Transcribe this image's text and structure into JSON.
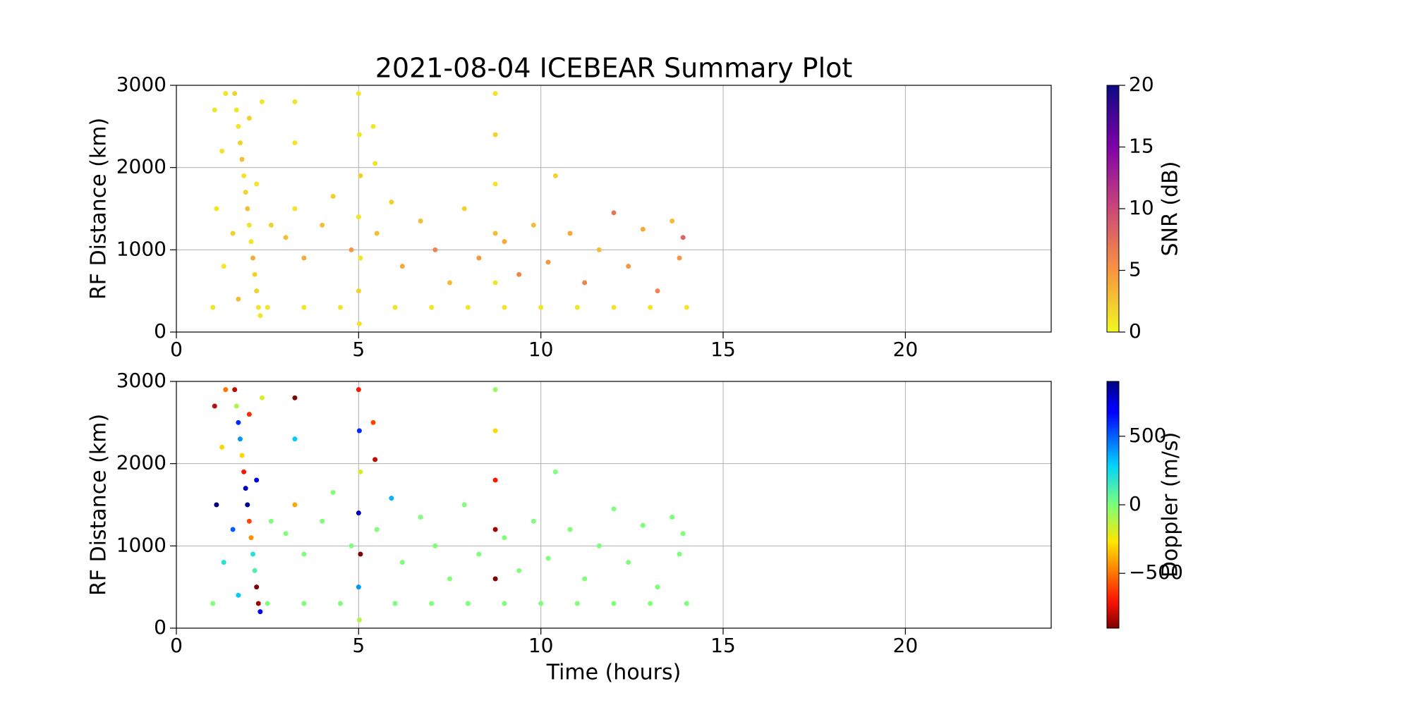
{
  "chart_data": [
    {
      "type": "scatter",
      "title": "2021-08-04 ICEBEAR Summary Plot",
      "ylabel": "RF Distance (km)",
      "colorbar_label": "SNR (dB)",
      "colormap": "plasma_r",
      "xlim": [
        0,
        24
      ],
      "xticks": [
        0,
        5,
        10,
        15,
        20
      ],
      "ylim": [
        0,
        3000
      ],
      "yticks": [
        0,
        1000,
        2000,
        3000
      ],
      "grid": true,
      "clim": [
        0,
        20
      ],
      "cticks": [
        0,
        5,
        10,
        15,
        20
      ],
      "x": [
        1.6,
        1.7,
        1.8,
        1.9,
        2.0,
        2.1,
        2.2,
        2.3,
        1.65,
        1.75,
        1.85,
        1.95,
        2.05,
        2.15,
        2.25,
        1.55,
        2.35,
        1.7,
        2.0,
        2.2,
        1.05,
        1.1,
        1.25,
        1.3,
        1.35,
        3.25,
        3.25,
        3.25,
        5.0,
        5.02,
        5.05,
        5.0,
        5.05,
        5.0,
        5.02,
        5.4,
        5.45,
        8.75,
        8.75,
        8.75,
        8.75,
        8.75,
        2.6,
        3.0,
        3.5,
        4.0,
        4.3,
        4.8,
        5.5,
        5.9,
        6.2,
        6.7,
        7.1,
        7.5,
        7.9,
        8.3,
        9.0,
        9.4,
        9.8,
        10.2,
        10.4,
        10.8,
        11.2,
        11.6,
        12.0,
        12.4,
        12.8,
        13.2,
        13.6,
        13.8,
        13.9,
        1.0,
        2.5,
        3.5,
        4.5,
        6,
        7,
        8,
        9,
        10,
        11,
        12,
        13,
        14
      ],
      "y": [
        2900,
        2500,
        2100,
        1700,
        1300,
        900,
        500,
        200,
        2700,
        2300,
        1900,
        1500,
        1100,
        700,
        300,
        1200,
        2800,
        400,
        2600,
        1800,
        2700,
        1500,
        2200,
        800,
        2900,
        2800,
        2300,
        1500,
        2900,
        2400,
        1900,
        1400,
        900,
        500,
        100,
        2500,
        2050,
        2900,
        2400,
        1800,
        1200,
        600,
        1300,
        1150,
        900,
        1300,
        1650,
        1000,
        1200,
        1580,
        800,
        1350,
        1000,
        600,
        1500,
        900,
        1100,
        700,
        1300,
        850,
        1900,
        1200,
        600,
        1000,
        1450,
        800,
        1250,
        500,
        1350,
        900,
        1150,
        300,
        300,
        300,
        300,
        300,
        300,
        300,
        300,
        300,
        300,
        300,
        300,
        300
      ],
      "c": [
        2,
        1,
        3,
        2,
        1,
        4,
        2,
        1,
        1,
        2,
        1,
        3,
        1,
        2,
        1,
        2,
        1,
        3,
        2,
        1,
        1,
        1,
        1,
        1,
        1,
        1,
        1,
        1,
        1,
        1,
        2,
        1,
        1,
        2,
        1,
        1,
        1,
        1,
        2,
        1,
        3,
        1,
        2,
        3,
        4,
        3,
        2,
        5,
        3,
        2,
        4,
        3,
        6,
        3,
        2,
        5,
        4,
        6,
        3,
        5,
        2,
        4,
        6,
        3,
        7,
        5,
        4,
        6,
        3,
        5,
        8,
        1,
        1,
        1,
        1,
        1,
        1,
        1,
        1,
        1,
        1,
        1,
        1,
        1
      ]
    },
    {
      "type": "scatter",
      "xlabel": "Time (hours)",
      "ylabel": "RF Distance (km)",
      "colorbar_label": "Doppler (m/s)",
      "colormap": "jet_r",
      "xlim": [
        0,
        24
      ],
      "xticks": [
        0,
        5,
        10,
        15,
        20
      ],
      "ylim": [
        0,
        3000
      ],
      "yticks": [
        0,
        1000,
        2000,
        3000
      ],
      "grid": true,
      "clim": [
        -900,
        900
      ],
      "cticks": [
        {
          "value": -500,
          "label": "−500"
        },
        0,
        500
      ],
      "x": [
        1.6,
        1.7,
        1.8,
        1.9,
        2.0,
        2.1,
        2.2,
        2.3,
        1.65,
        1.75,
        1.85,
        1.95,
        2.05,
        2.15,
        2.25,
        1.55,
        2.35,
        1.7,
        2.0,
        2.2,
        1.05,
        1.1,
        1.25,
        1.3,
        1.35,
        3.25,
        3.25,
        3.25,
        5.0,
        5.02,
        5.05,
        5.0,
        5.05,
        5.0,
        5.02,
        5.4,
        5.45,
        8.75,
        8.75,
        8.75,
        8.75,
        8.75,
        2.6,
        3.0,
        3.5,
        4.0,
        4.3,
        4.8,
        5.5,
        5.9,
        6.2,
        6.7,
        7.1,
        7.5,
        7.9,
        8.3,
        9.0,
        9.4,
        9.8,
        10.2,
        10.4,
        10.8,
        11.2,
        11.6,
        12.0,
        12.4,
        12.8,
        13.2,
        13.6,
        13.8,
        13.9,
        1.0,
        2.5,
        3.5,
        4.5,
        6,
        7,
        8,
        9,
        10,
        11,
        12,
        13,
        14
      ],
      "y": [
        2900,
        2500,
        2100,
        1700,
        1300,
        900,
        500,
        200,
        2700,
        2300,
        1900,
        1500,
        1100,
        700,
        300,
        1200,
        2800,
        400,
        2600,
        1800,
        2700,
        1500,
        2200,
        800,
        2900,
        2800,
        2300,
        1500,
        2900,
        2400,
        1900,
        1400,
        900,
        500,
        100,
        2500,
        2050,
        2900,
        2400,
        1800,
        1200,
        600,
        1300,
        1150,
        900,
        1300,
        1650,
        1000,
        1200,
        1580,
        800,
        1350,
        1000,
        600,
        1500,
        900,
        1100,
        700,
        1300,
        850,
        1900,
        1200,
        600,
        1000,
        1450,
        800,
        1250,
        500,
        1350,
        900,
        1150,
        300,
        300,
        300,
        300,
        300,
        300,
        300,
        300,
        300,
        300,
        300,
        300,
        300
      ],
      "c": [
        -800,
        600,
        -300,
        800,
        -600,
        200,
        -900,
        700,
        -100,
        400,
        -700,
        850,
        -450,
        100,
        -850,
        500,
        -200,
        300,
        -650,
        750,
        -800,
        900,
        -300,
        200,
        -500,
        -900,
        300,
        -400,
        -700,
        600,
        -200,
        800,
        -900,
        400,
        -100,
        -600,
        -800,
        -50,
        -300,
        -700,
        -850,
        -900,
        0,
        0,
        0,
        0,
        0,
        0,
        0,
        350,
        0,
        0,
        0,
        0,
        0,
        0,
        0,
        0,
        0,
        0,
        0,
        0,
        0,
        0,
        0,
        0,
        0,
        0,
        0,
        0,
        0,
        0,
        0,
        0,
        0,
        0,
        0,
        0,
        0,
        0,
        0,
        0,
        0,
        0
      ]
    }
  ]
}
